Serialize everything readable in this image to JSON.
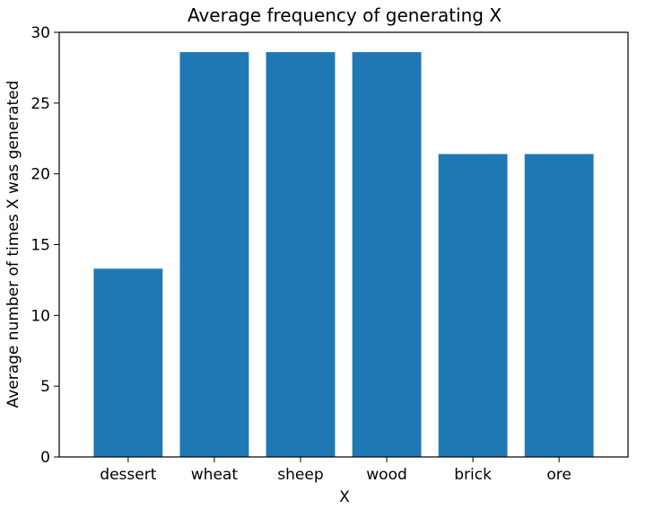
{
  "chart_data": {
    "type": "bar",
    "title": "Average frequency of generating X",
    "xlabel": "X",
    "ylabel": "Average number of times X was generated",
    "categories": [
      "dessert",
      "wheat",
      "sheep",
      "wood",
      "brick",
      "ore"
    ],
    "values": [
      13.3,
      28.6,
      28.6,
      28.6,
      21.4,
      21.4
    ],
    "ylim": [
      0,
      30
    ],
    "yticks": [
      0,
      5,
      10,
      15,
      20,
      25,
      30
    ],
    "bar_color": "#1f77b4",
    "grid": false,
    "legend": "none"
  }
}
